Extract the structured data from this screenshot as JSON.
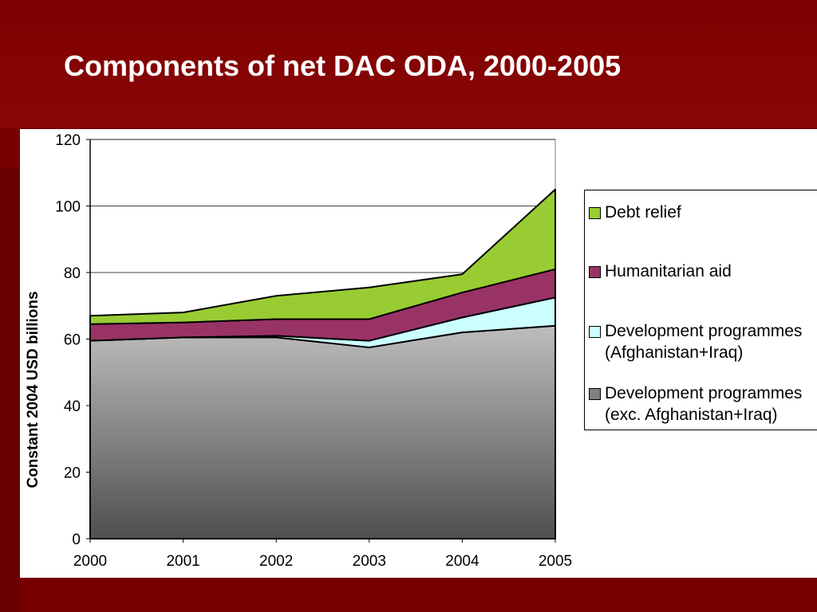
{
  "slide": {
    "title": "Components of net DAC ODA, 2000-2005",
    "background_color": "#780000"
  },
  "chart_data": {
    "type": "area",
    "stacked": true,
    "title": "",
    "xlabel": "",
    "ylabel": "Constant 2004 USD billions",
    "categories": [
      "2000",
      "2001",
      "2002",
      "2003",
      "2004",
      "2005"
    ],
    "ylim": [
      0,
      120
    ],
    "yticks": [
      0,
      20,
      40,
      60,
      80,
      100,
      120
    ],
    "grid": true,
    "legend_position": "right",
    "series": [
      {
        "name": "Development programmes (exc. Afghanistan+Iraq)",
        "values": [
          59.5,
          60.5,
          60.5,
          57.5,
          62,
          64
        ],
        "color": "#8c8c8c"
      },
      {
        "name": "Development programmes (Afghanistan+Iraq)",
        "values": [
          0,
          0,
          0.5,
          2,
          4.5,
          8.5
        ],
        "color": "#ccffff"
      },
      {
        "name": "Humanitarian aid",
        "values": [
          5,
          4.5,
          5,
          6.5,
          7.5,
          8.5
        ],
        "color": "#993366"
      },
      {
        "name": "Debt relief",
        "values": [
          2.5,
          3,
          7,
          9.5,
          5.5,
          24
        ],
        "color": "#99cc33"
      }
    ]
  },
  "legend": {
    "items": [
      {
        "label": "Debt relief",
        "color": "#99cc33"
      },
      {
        "label": "Humanitarian aid",
        "color": "#993366"
      },
      {
        "label": "Development programmes\n(Afghanistan+Iraq)",
        "color": "#ccffff"
      },
      {
        "label": "Development programmes\n(exc. Afghanistan+Iraq)",
        "color": "#808080"
      }
    ]
  }
}
